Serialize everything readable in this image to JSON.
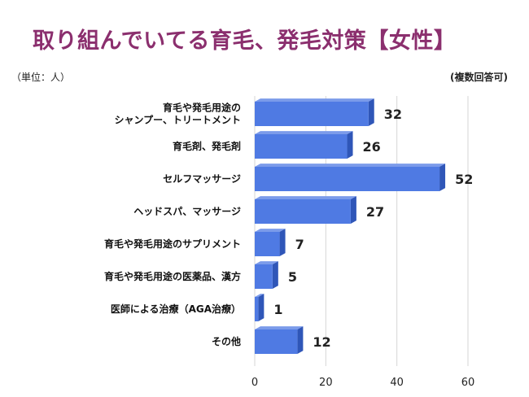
{
  "title": "取り組んでいてる育毛、発毛対策【女性】",
  "unit_note": "（単位：人）",
  "multi_answer_note": "(複数回答可)",
  "colors": {
    "title": "#8b2f6e",
    "bar_front": "#4f7ae3",
    "bar_top": "#7b9bea",
    "bar_side": "#2f56b8",
    "grid": "#d6d6d6"
  },
  "chart_data": {
    "type": "bar",
    "orientation": "horizontal",
    "title": "取り組んでいてる育毛、発毛対策【女性】",
    "categories": [
      [
        "育毛や発毛用途の",
        "シャンプー、トリートメント"
      ],
      [
        "育毛剤、発毛剤"
      ],
      [
        "セルフマッサージ"
      ],
      [
        "ヘッドスパ、マッサージ"
      ],
      [
        "育毛や発毛用途のサプリメント"
      ],
      [
        "育毛や発毛用途の医薬品、漢方"
      ],
      [
        "医師による治療（AGA治療）"
      ],
      [
        "その他"
      ]
    ],
    "values": [
      32,
      26,
      52,
      27,
      7,
      5,
      1,
      12
    ],
    "xlim": [
      0,
      60
    ],
    "xticks": [
      0,
      20,
      40,
      60
    ],
    "grid": true
  }
}
